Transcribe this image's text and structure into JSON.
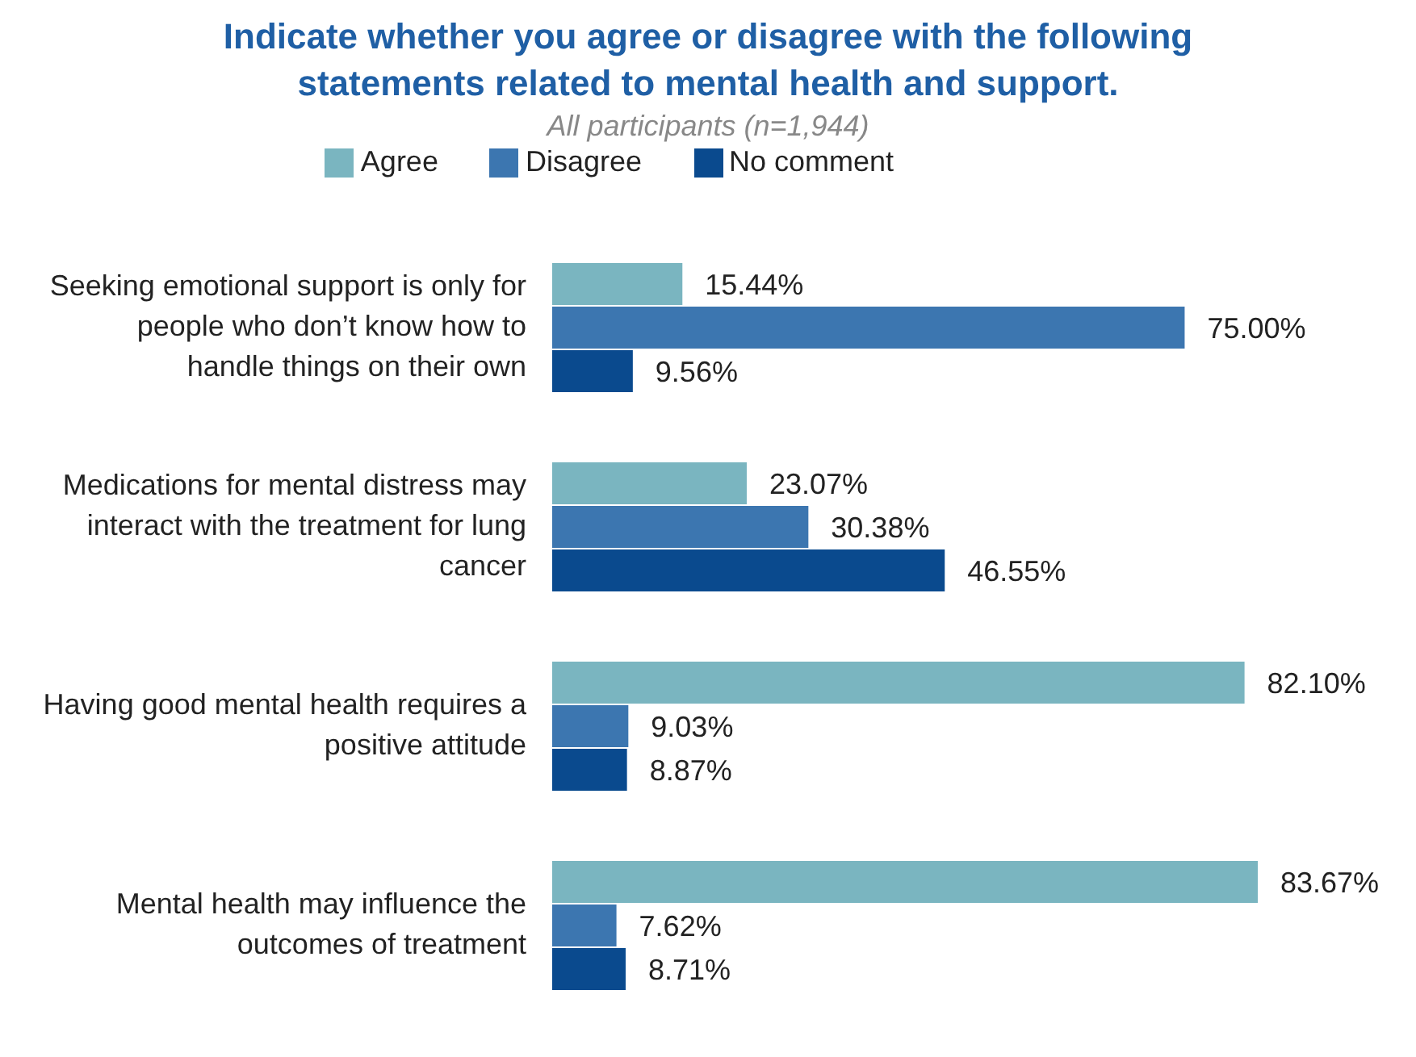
{
  "chart_data": {
    "type": "bar",
    "orientation": "horizontal",
    "title": "Indicate whether you agree or disagree with the following statements related to mental health and support.",
    "subtitle": "All participants (n=1,944)",
    "categories": [
      "Seeking emotional support is only for people who don’t know how to handle things on their own",
      "Medications for mental distress may interact with the treatment for lung cancer",
      "Having good mental health requires a positive attitude",
      "Mental health may influence the outcomes of treatment"
    ],
    "series": [
      {
        "name": "Agree",
        "color": "#7ab5c0",
        "values": [
          15.44,
          23.07,
          82.1,
          83.67
        ],
        "value_labels": [
          "15.44%",
          "23.07%",
          "82.10%",
          "83.67%"
        ]
      },
      {
        "name": "Disagree",
        "color": "#3c76b0",
        "values": [
          75,
          30.38,
          9.03,
          7.62
        ],
        "value_labels": [
          "75.00%",
          "30.38%",
          "9.03%",
          "7.62%"
        ]
      },
      {
        "name": "No comment",
        "color": "#0a4a8e",
        "values": [
          9.56,
          46.55,
          8.87,
          8.71
        ],
        "value_labels": [
          "9.56%",
          "46.55%",
          "8.87%",
          "8.71%"
        ]
      }
    ],
    "legend": "top",
    "grid": false
  }
}
